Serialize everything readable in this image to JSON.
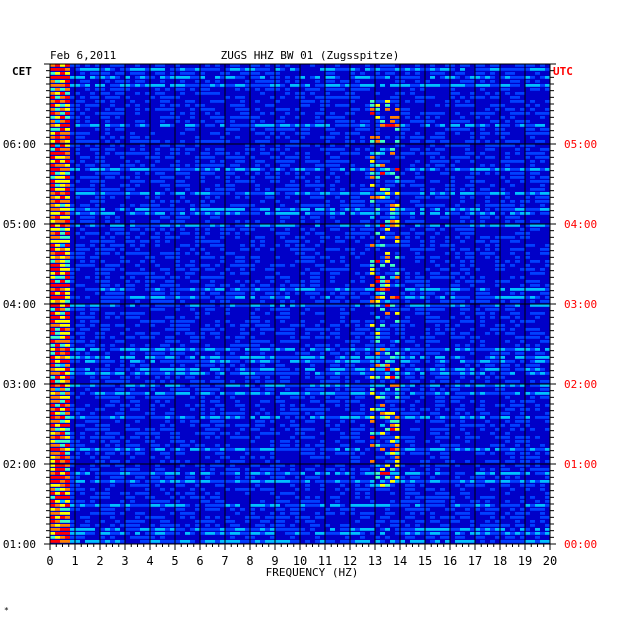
{
  "header": {
    "date": "Feb 6,2011",
    "station": "ZUGS HHZ BW 01 (Zugsspitze)"
  },
  "axes": {
    "left_zone": "CET",
    "right_zone": "UTC",
    "xlabel": "FREQUENCY (HZ)"
  },
  "footer": {
    "mark": "*"
  },
  "colors": {
    "background": "#0000c8",
    "grid": "#000000",
    "right_labels": "#ff0000",
    "left_labels": "#000000"
  },
  "chart_data": {
    "type": "heatmap",
    "title": "ZUGS HHZ BW 01 (Zugsspitze)",
    "date": "Feb 6,2011",
    "xlabel": "FREQUENCY (HZ)",
    "xlim": [
      0,
      20
    ],
    "x_ticks": [
      0,
      1,
      2,
      3,
      4,
      5,
      6,
      7,
      8,
      9,
      10,
      11,
      12,
      13,
      14,
      15,
      16,
      17,
      18,
      19,
      20
    ],
    "ylim_hours_cet": [
      1.0,
      7.0
    ],
    "y_ticks_cet": [
      {
        "hour": 6,
        "label": "06:00"
      },
      {
        "hour": 5,
        "label": "05:00"
      },
      {
        "hour": 4,
        "label": "04:00"
      },
      {
        "hour": 3,
        "label": "03:00"
      },
      {
        "hour": 2,
        "label": "02:00"
      },
      {
        "hour": 1,
        "label": "01:00"
      }
    ],
    "y_ticks_utc": [
      {
        "hour": 6,
        "label": "05:00"
      },
      {
        "hour": 5,
        "label": "04:00"
      },
      {
        "hour": 4,
        "label": "03:00"
      },
      {
        "hour": 3,
        "label": "02:00"
      },
      {
        "hour": 2,
        "label": "01:00"
      },
      {
        "hour": 1,
        "label": "00:00"
      }
    ],
    "colorscale": [
      "#0000c8",
      "#0040ff",
      "#00c0ff",
      "#40ffc0",
      "#ffff00",
      "#ff8000",
      "#ff0000"
    ],
    "features": [
      {
        "name": "low-frequency band",
        "freq_range_hz": [
          0.0,
          0.6
        ],
        "intensity": "high",
        "time_range_cet": [
          1.0,
          7.0
        ]
      },
      {
        "name": "13 Hz line",
        "freq_range_hz": [
          12.8,
          13.8
        ],
        "intensity": "high",
        "time_range_cet": [
          1.7,
          6.6
        ]
      }
    ]
  }
}
